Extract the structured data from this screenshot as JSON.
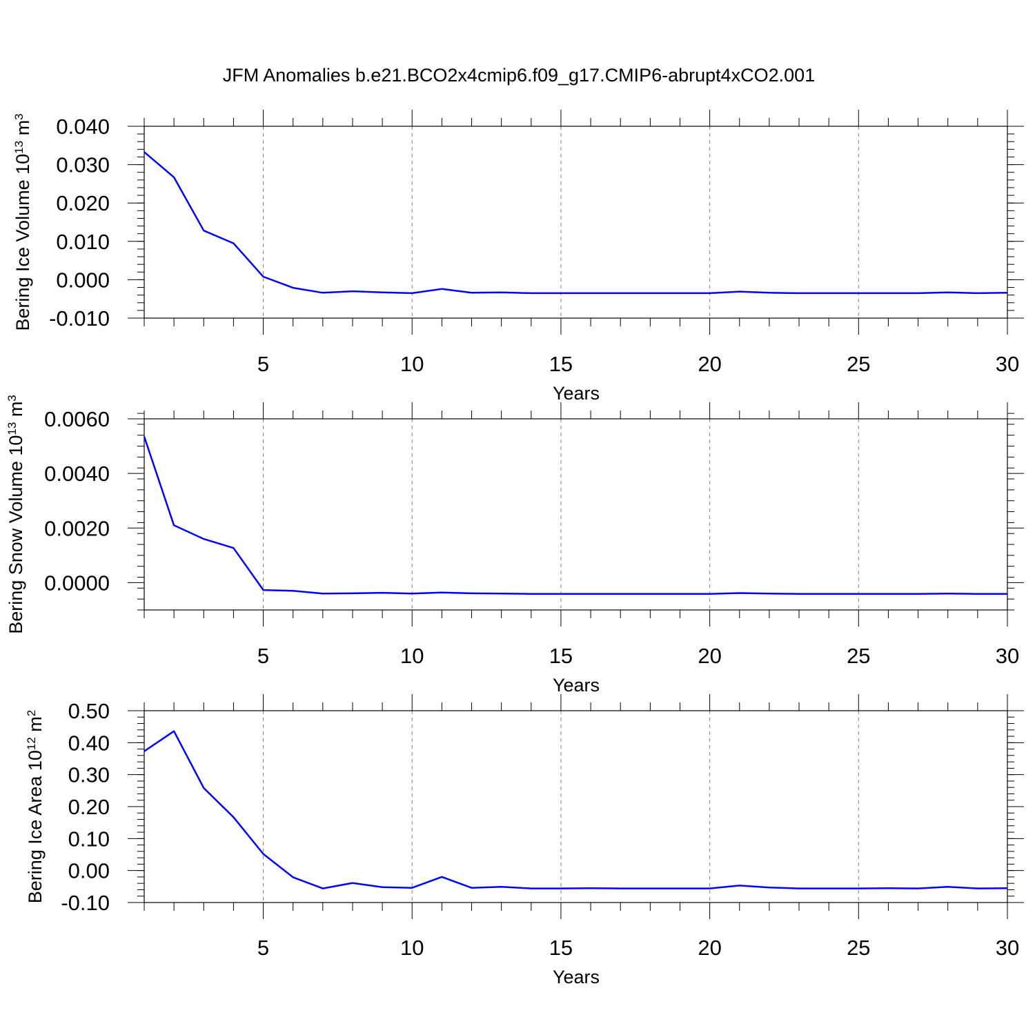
{
  "title": "JFM Anomalies b.e21.BCO2x4cmip6.f09_g17.CMIP6-abrupt4xCO2.001",
  "colors": {
    "line": "#0000ff",
    "axis": "#000000",
    "grid": "#7f7f7f"
  },
  "chart_data": [
    {
      "type": "line",
      "xlabel": "Years",
      "ylabel": {
        "text": "Bering Ice Volume 10",
        "exp": "13",
        "unit": " m",
        "unit_exp": "3"
      },
      "xlim": [
        1,
        30
      ],
      "ylim": [
        -0.01,
        0.04
      ],
      "xticks": [
        "5",
        "10",
        "15",
        "20",
        "25",
        "30"
      ],
      "yticks": [
        "-0.010",
        "0.000",
        "0.010",
        "0.020",
        "0.030",
        "0.040"
      ],
      "grid": "vertical dashed at major x ticks",
      "x": [
        1,
        2,
        3,
        4,
        5,
        6,
        7,
        8,
        9,
        10,
        11,
        12,
        13,
        14,
        15,
        16,
        17,
        18,
        19,
        20,
        21,
        22,
        23,
        24,
        25,
        26,
        27,
        28,
        29,
        30
      ],
      "series": [
        {
          "values": [
            0.0333,
            0.0267,
            0.0128,
            0.0095,
            0.0008,
            -0.0021,
            -0.0034,
            -0.003,
            -0.0033,
            -0.0035,
            -0.0024,
            -0.0034,
            -0.0033,
            -0.0035,
            -0.0035,
            -0.0035,
            -0.0035,
            -0.0035,
            -0.0035,
            -0.0035,
            -0.0031,
            -0.0034,
            -0.0035,
            -0.0035,
            -0.0035,
            -0.0035,
            -0.0035,
            -0.0033,
            -0.0035,
            -0.0034
          ]
        }
      ]
    },
    {
      "type": "line",
      "xlabel": "Years",
      "ylabel": {
        "text": "Bering Snow Volume 10",
        "exp": "13",
        "unit": " m",
        "unit_exp": "3"
      },
      "xlim": [
        1,
        30
      ],
      "ylim": [
        -0.001,
        0.006
      ],
      "xticks": [
        "5",
        "10",
        "15",
        "20",
        "25",
        "30"
      ],
      "yticks": [
        "0.0000",
        "0.0020",
        "0.0040",
        "0.0060"
      ],
      "grid": "vertical dashed at major x ticks",
      "x": [
        1,
        2,
        3,
        4,
        5,
        6,
        7,
        8,
        9,
        10,
        11,
        12,
        13,
        14,
        15,
        16,
        17,
        18,
        19,
        20,
        21,
        22,
        23,
        24,
        25,
        26,
        27,
        28,
        29,
        30
      ],
      "series": [
        {
          "values": [
            0.00535,
            0.0021,
            0.0016,
            0.00127,
            -0.00027,
            -0.0003,
            -0.0004,
            -0.00039,
            -0.00037,
            -0.0004,
            -0.00036,
            -0.00039,
            -0.0004,
            -0.00041,
            -0.00041,
            -0.00041,
            -0.00041,
            -0.00041,
            -0.00041,
            -0.00041,
            -0.00038,
            -0.0004,
            -0.00041,
            -0.00041,
            -0.00041,
            -0.00041,
            -0.00041,
            -0.0004,
            -0.00041,
            -0.00041
          ]
        }
      ]
    },
    {
      "type": "line",
      "xlabel": "Years",
      "ylabel": {
        "text": "Bering Ice Area 10",
        "exp": "12",
        "unit": " m",
        "unit_exp": "2"
      },
      "xlim": [
        1,
        30
      ],
      "ylim": [
        -0.1,
        0.5
      ],
      "xticks": [
        "5",
        "10",
        "15",
        "20",
        "25",
        "30"
      ],
      "yticks": [
        "-0.10",
        "0.00",
        "0.10",
        "0.20",
        "0.30",
        "0.40",
        "0.50"
      ],
      "grid": "vertical dashed at major x ticks",
      "x": [
        1,
        2,
        3,
        4,
        5,
        6,
        7,
        8,
        9,
        10,
        11,
        12,
        13,
        14,
        15,
        16,
        17,
        18,
        19,
        20,
        21,
        22,
        23,
        24,
        25,
        26,
        27,
        28,
        29,
        30
      ],
      "series": [
        {
          "values": [
            0.373,
            0.436,
            0.258,
            0.167,
            0.052,
            -0.021,
            -0.056,
            -0.039,
            -0.052,
            -0.054,
            -0.02,
            -0.054,
            -0.051,
            -0.056,
            -0.056,
            -0.055,
            -0.056,
            -0.056,
            -0.056,
            -0.056,
            -0.047,
            -0.053,
            -0.056,
            -0.056,
            -0.056,
            -0.055,
            -0.056,
            -0.051,
            -0.056,
            -0.055
          ]
        }
      ]
    }
  ]
}
